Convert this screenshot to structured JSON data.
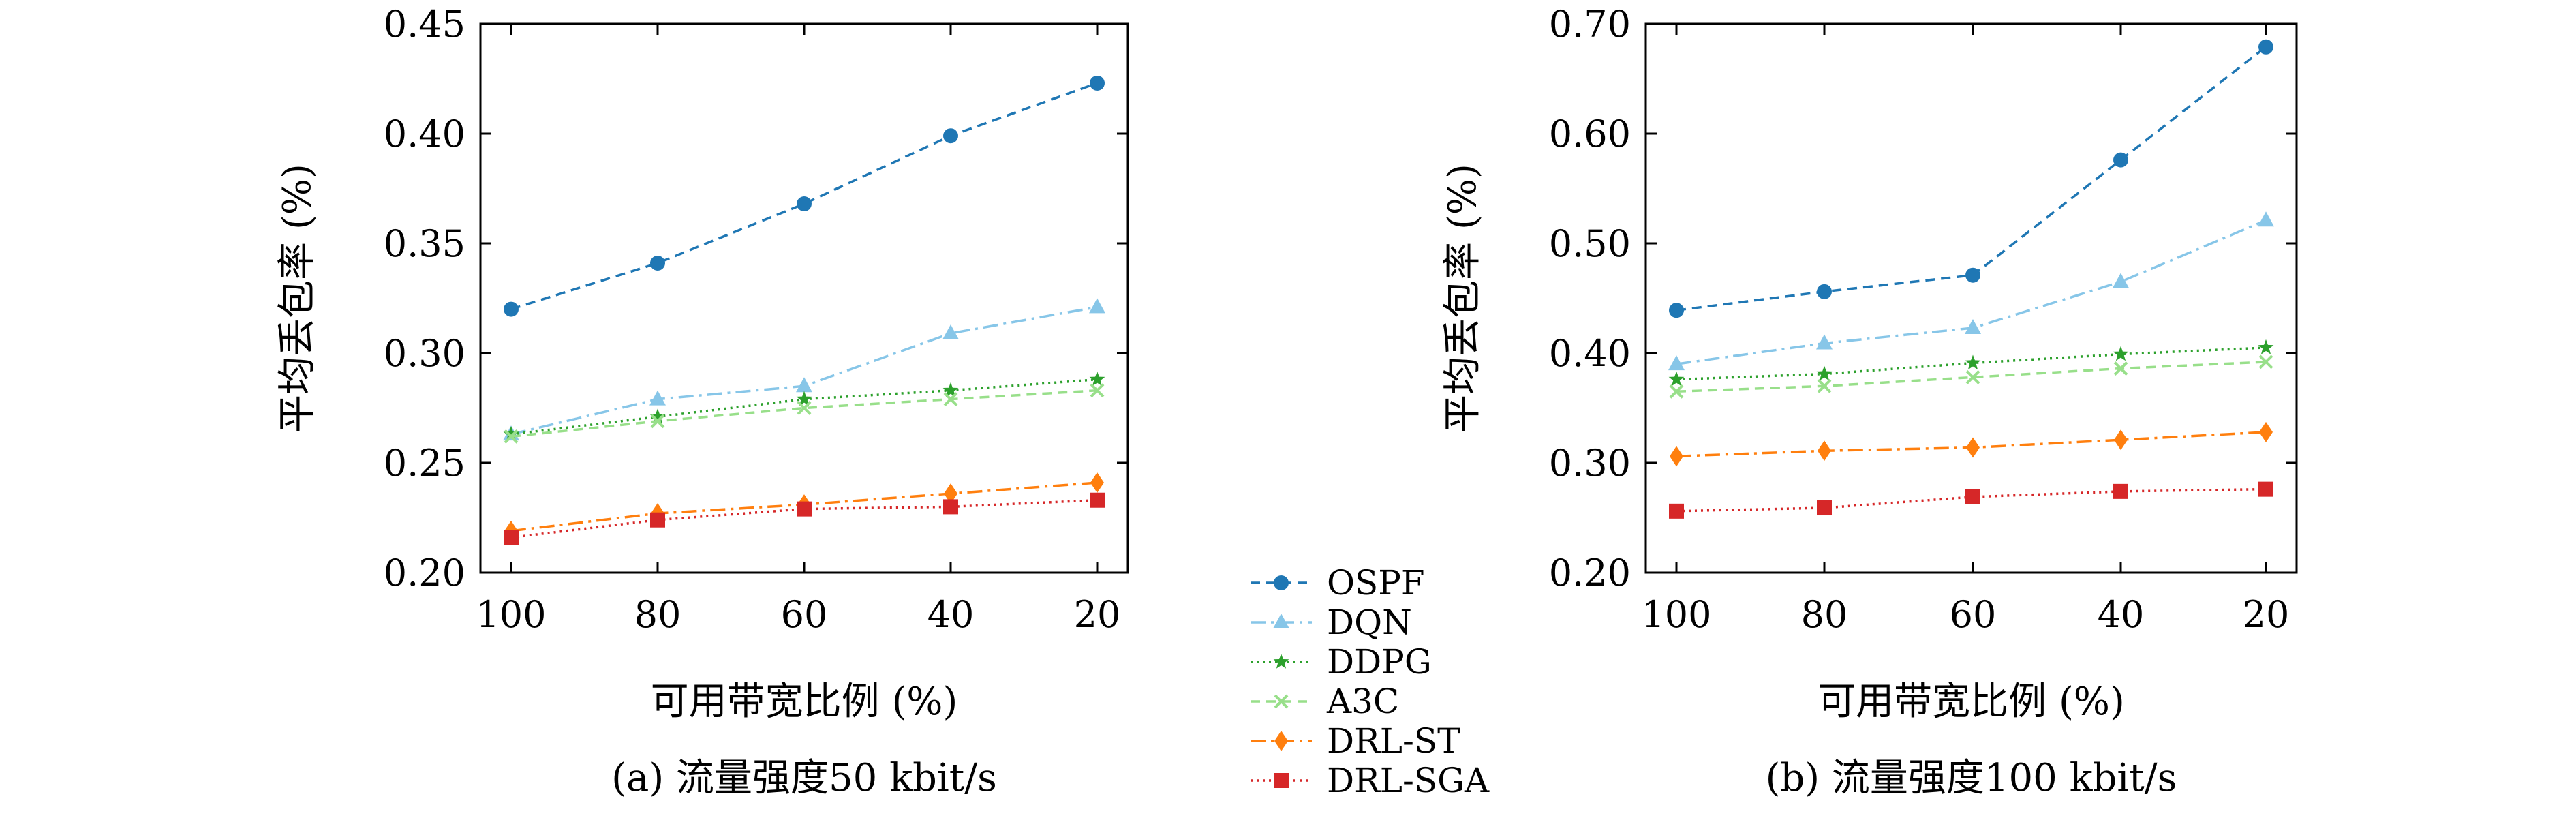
{
  "chart_data": [
    {
      "type": "line",
      "caption": "(a) 流量强度50 kbit/s",
      "xlabel": "可用带宽比例 (%)",
      "ylabel": "平均丢包率 (%)",
      "categories": [
        "100",
        "80",
        "60",
        "40",
        "20"
      ],
      "ylim": [
        0.2,
        0.45
      ],
      "yticks": [
        "0.20",
        "0.25",
        "0.30",
        "0.35",
        "0.40",
        "0.45"
      ],
      "series": [
        {
          "name": "OSPF",
          "values": [
            0.32,
            0.341,
            0.368,
            0.399,
            0.423
          ]
        },
        {
          "name": "DQN",
          "values": [
            0.263,
            0.279,
            0.285,
            0.309,
            0.321
          ]
        },
        {
          "name": "DDPG",
          "values": [
            0.263,
            0.271,
            0.279,
            0.283,
            0.288
          ]
        },
        {
          "name": "A3C",
          "values": [
            0.262,
            0.269,
            0.275,
            0.279,
            0.283
          ]
        },
        {
          "name": "DRL-ST",
          "values": [
            0.219,
            0.227,
            0.231,
            0.236,
            0.241
          ]
        },
        {
          "name": "DRL-SGA",
          "values": [
            0.216,
            0.224,
            0.229,
            0.23,
            0.233
          ]
        }
      ]
    },
    {
      "type": "line",
      "caption": "(b) 流量强度100 kbit/s",
      "xlabel": "可用带宽比例 (%)",
      "ylabel": "平均丢包率 (%)",
      "categories": [
        "100",
        "80",
        "60",
        "40",
        "20"
      ],
      "ylim": [
        0.2,
        0.7
      ],
      "yticks": [
        "0.20",
        "0.30",
        "0.40",
        "0.50",
        "0.60",
        "0.70"
      ],
      "series": [
        {
          "name": "OSPF",
          "values": [
            0.439,
            0.456,
            0.471,
            0.576,
            0.679
          ]
        },
        {
          "name": "DQN",
          "values": [
            0.39,
            0.409,
            0.423,
            0.465,
            0.521
          ]
        },
        {
          "name": "DDPG",
          "values": [
            0.376,
            0.381,
            0.391,
            0.399,
            0.405
          ]
        },
        {
          "name": "A3C",
          "values": [
            0.365,
            0.37,
            0.378,
            0.386,
            0.392
          ]
        },
        {
          "name": "DRL-ST",
          "values": [
            0.306,
            0.311,
            0.314,
            0.321,
            0.328
          ]
        },
        {
          "name": "DRL-SGA",
          "values": [
            0.256,
            0.259,
            0.269,
            0.274,
            0.276
          ]
        }
      ]
    }
  ],
  "legend": {
    "position": "bottom-center",
    "entries": [
      "OSPF",
      "DQN",
      "DDPG",
      "A3C",
      "DRL-ST",
      "DRL-SGA"
    ]
  },
  "series_styles": [
    {
      "color": "#1f77b4",
      "dash": "14,9",
      "marker": "circle"
    },
    {
      "color": "#87c6e8",
      "dash": "22,8,4,8",
      "marker": "triangle"
    },
    {
      "color": "#2ca02c",
      "dash": "3,6",
      "marker": "star"
    },
    {
      "color": "#98df8a",
      "dash": "14,9",
      "marker": "x"
    },
    {
      "color": "#ff7f0e",
      "dash": "22,8,4,8",
      "marker": "diamond"
    },
    {
      "color": "#d62728",
      "dash": "3,6",
      "marker": "square"
    }
  ]
}
